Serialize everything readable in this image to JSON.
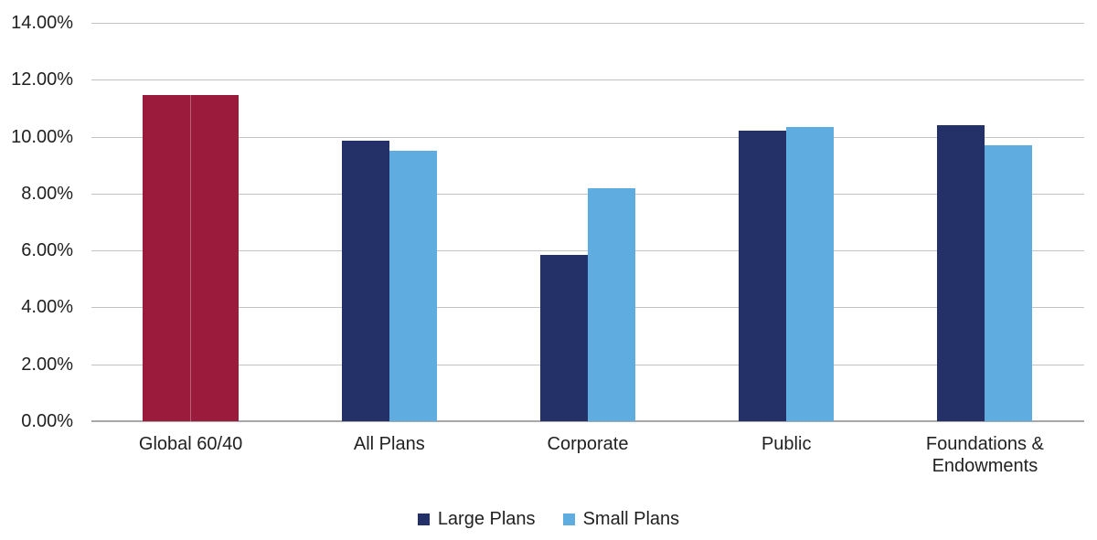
{
  "colors": {
    "background": "#ffffff",
    "gridline": "#c3c3c3",
    "axis_line": "#a8a8a8",
    "text": "#212121",
    "navy": "#233168",
    "light_blue": "#5eace0",
    "maroon": "#9a1b3c"
  },
  "chart_data": {
    "type": "bar",
    "title": "",
    "xlabel": "",
    "ylabel": "",
    "categories": [
      "Global 60/40",
      "All Plans",
      "Corporate",
      "Public",
      "Foundations & Endowments"
    ],
    "series": [
      {
        "name": "Large Plans",
        "color": "#233168",
        "values": [
          11.45,
          9.85,
          5.85,
          10.2,
          10.4
        ]
      },
      {
        "name": "Small Plans",
        "color": "#5eace0",
        "values": [
          11.45,
          9.5,
          8.2,
          10.35,
          9.7
        ]
      }
    ],
    "category_color_overrides": {
      "Global 60/40": "#9a1b3c"
    },
    "ylim": [
      0,
      14
    ],
    "ytick_step": 2,
    "yticks": [
      {
        "value": 14,
        "label": "14.00%"
      },
      {
        "value": 12,
        "label": "12.00%"
      },
      {
        "value": 10,
        "label": "10.00%"
      },
      {
        "value": 8,
        "label": "8.00%"
      },
      {
        "value": 6,
        "label": "6.00%"
      },
      {
        "value": 4,
        "label": "4.00%"
      },
      {
        "value": 2,
        "label": "2.00%"
      },
      {
        "value": 0,
        "label": "0.00%"
      }
    ],
    "grid": true,
    "legend_position": "bottom",
    "legend": [
      {
        "label": "Large Plans",
        "color": "#233168"
      },
      {
        "label": "Small Plans",
        "color": "#5eace0"
      }
    ]
  }
}
